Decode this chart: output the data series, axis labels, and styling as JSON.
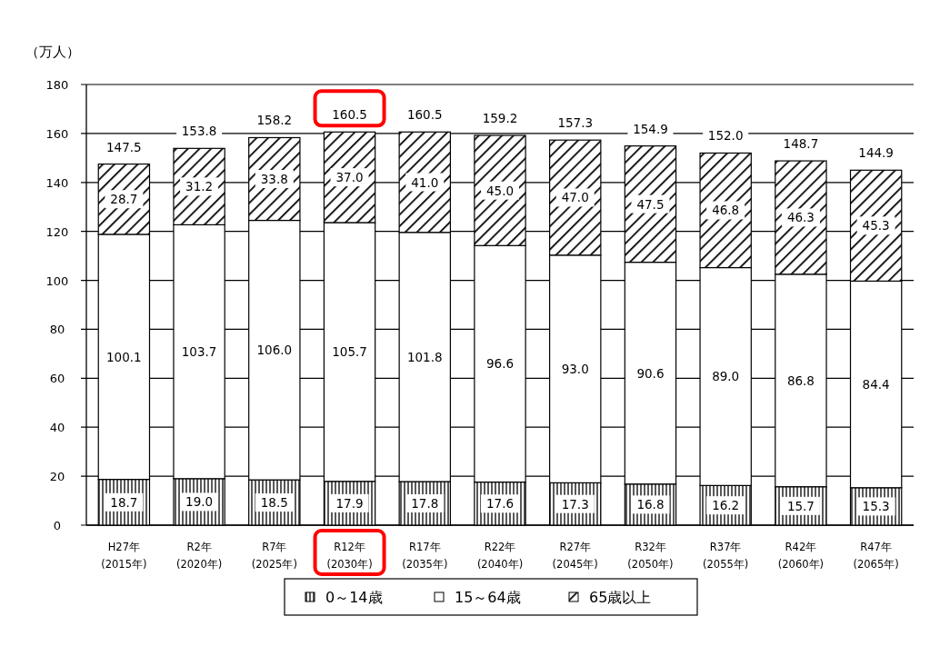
{
  "chart_data": {
    "type": "bar",
    "stacked": true,
    "ylabel": "（万人）",
    "categories": [
      "H27年\n(2015年)",
      "R2年\n(2020年)",
      "R7年\n(2025年)",
      "R12年\n(2030年)",
      "R17年\n(2035年)",
      "R22年\n(2040年)",
      "R27年\n(2045年)",
      "R32年\n(2050年)",
      "R37年\n(2055年)",
      "R42年\n(2060年)",
      "R47年\n(2065年)"
    ],
    "series": [
      {
        "name": "0～14歳",
        "color": "#000000",
        "values": [
          18.7,
          19.0,
          18.5,
          17.9,
          17.8,
          17.6,
          17.3,
          16.8,
          16.2,
          15.7,
          15.3
        ],
        "value_labels": [
          "18.7",
          "19.0",
          "18.5",
          "17.9",
          "17.8",
          "17.6",
          "17.3",
          "16.8",
          "16.2",
          "15.7",
          "15.3"
        ]
      },
      {
        "name": "15～64歳",
        "color": "#ffffff",
        "values": [
          100.1,
          103.7,
          106.0,
          105.7,
          101.8,
          96.6,
          93.0,
          90.6,
          89.0,
          86.8,
          84.4
        ],
        "value_labels": [
          "100.1",
          "103.7",
          "106.0",
          "105.7",
          "101.8",
          "96.6",
          "93.0",
          "90.6",
          "89.0",
          "86.8",
          "84.4"
        ]
      },
      {
        "name": "65歳以上",
        "color": "#000000",
        "values": [
          28.7,
          31.2,
          33.8,
          37.0,
          41.0,
          45.0,
          47.0,
          47.5,
          46.8,
          46.3,
          45.3
        ],
        "value_labels": [
          "28.7",
          "31.2",
          "33.8",
          "37.0",
          "41.0",
          "45.0",
          "47.0",
          "47.5",
          "46.8",
          "46.3",
          "45.3"
        ]
      }
    ],
    "totals": [
      "147.5",
      "153.8",
      "158.2",
      "160.5",
      "160.5",
      "159.2",
      "157.3",
      "154.9",
      "152.0",
      "148.7",
      "144.9"
    ],
    "ylim": [
      0,
      180
    ],
    "yticks": [
      0,
      20,
      40,
      60,
      80,
      100,
      120,
      140,
      160,
      180
    ],
    "grid": "y",
    "legend": "bottom"
  }
}
